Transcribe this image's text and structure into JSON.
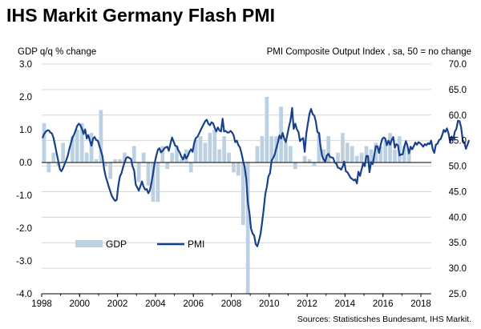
{
  "title": "IHS Markit Germany Flash PMI",
  "source": "Sources: Statisticshes Bundesamt, IHS Markit.",
  "colors": {
    "gdp": "#bcd0e2",
    "pmi": "#17418c",
    "grid": "#d6d6d6",
    "text": "#000000"
  },
  "chart_data": {
    "type": "bar+line",
    "left_axis_label": "GDP q/q % change",
    "right_axis_label": "PMI Composite  Output Index , sa, 50 = no change",
    "ylim_left": [
      -4.0,
      3.0
    ],
    "ylim_right": [
      25.0,
      70.0
    ],
    "left_ticks": [
      "3.0",
      "2.0",
      "1.0",
      "0.0",
      "-1.0",
      "-2.0",
      "-3.0",
      "-4.0"
    ],
    "right_ticks": [
      "70.0",
      "65.0",
      "60.0",
      "55.0",
      "50.0",
      "45.0",
      "40.0",
      "35.0",
      "30.0",
      "25.0"
    ],
    "x_ticks": [
      "1998",
      "2000",
      "2002",
      "2004",
      "2006",
      "2008",
      "2010",
      "2012",
      "2014",
      "2016",
      "2018"
    ],
    "grid": "horizontal",
    "legend": {
      "position": "bottom-left",
      "gdp_label": "GDP",
      "pmi_label": "PMI"
    },
    "gdp": {
      "name": "GDP",
      "start": "1998Q1",
      "values": [
        1.2,
        -0.3,
        0.3,
        -0.1,
        0.6,
        0.0,
        0.8,
        1.0,
        1.2,
        0.3,
        0.9,
        0.1,
        1.6,
        -0.1,
        -0.5,
        0.1,
        0.1,
        0.3,
        0.0,
        0.5,
        -0.6,
        0.3,
        -0.7,
        -1.2,
        -1.2,
        0.5,
        -0.2,
        0.3,
        0.5,
        0.1,
        0.4,
        -0.3,
        0.7,
        0.8,
        0.6,
        0.9,
        1.0,
        0.4,
        0.8,
        0.3,
        -0.3,
        -0.4,
        -1.9,
        -4.0,
        0.0,
        0.5,
        0.8,
        2.0,
        0.8,
        0.8,
        1.7,
        0.6,
        0.5,
        -0.2,
        0.0,
        0.2,
        0.1,
        -0.1,
        0.9,
        0.4,
        0.8,
        0.0,
        0.3,
        0.9,
        0.6,
        0.5,
        0.2,
        0.3,
        0.5,
        0.4,
        0.6,
        0.5,
        0.7,
        0.9,
        0.4,
        0.8,
        0.5,
        0.4
      ]
    },
    "pmi": {
      "name": "PMI",
      "start": "1998-01",
      "values": [
        55.5,
        56.3,
        56.7,
        57.0,
        57.0,
        56.6,
        56.4,
        55.5,
        54.0,
        52.5,
        51.0,
        49.4,
        49.0,
        49.6,
        50.4,
        51.1,
        52.0,
        53.4,
        54.5,
        55.6,
        56.2,
        57.0,
        57.9,
        58.3,
        58.0,
        57.3,
        56.3,
        57.2,
        55.4,
        56.1,
        55.0,
        54.0,
        55.4,
        55.7,
        55.1,
        55.0,
        54.0,
        53.0,
        51.9,
        49.5,
        48.0,
        47.0,
        45.9,
        45.0,
        44.1,
        43.6,
        43.2,
        43.4,
        46.2,
        48.0,
        48.6,
        49.8,
        50.8,
        51.6,
        51.8,
        51.6,
        51.4,
        50.0,
        49.2,
        46.4,
        45.8,
        45.2,
        46.1,
        47.0,
        46.0,
        45.4,
        45.5,
        44.7,
        45.3,
        46.8,
        48.5,
        50.6,
        52.0,
        53.2,
        53.5,
        52.7,
        53.0,
        53.4,
        53.7,
        53.8,
        53.0,
        54.4,
        55.6,
        54.8,
        54.0,
        53.9,
        53.1,
        52.6,
        51.8,
        51.3,
        52.3,
        51.5,
        52.0,
        52.8,
        53.3,
        52.8,
        54.5,
        55.5,
        55.7,
        56.3,
        57.0,
        57.6,
        58.2,
        58.8,
        59.1,
        58.3,
        58.0,
        58.6,
        58.4,
        57.5,
        56.8,
        57.6,
        57.0,
        56.8,
        59.3,
        56.8,
        56.9,
        56.6,
        56.6,
        56.9,
        56.6,
        56.0,
        54.7,
        55.0,
        54.1,
        53.7,
        52.5,
        51.0,
        49.8,
        47.5,
        42.8,
        40.8,
        37.8,
        36.8,
        36.4,
        34.7,
        34.3,
        35.4,
        36.7,
        38.9,
        41.5,
        44.5,
        45.9,
        48.0,
        48.6,
        51.1,
        51.6,
        52.3,
        53.5,
        54.6,
        56.0,
        55.4,
        56.5,
        55.4,
        54.7,
        56.2,
        57.7,
        59.0,
        61.4,
        57.3,
        58.3,
        57.2,
        56.7,
        54.9,
        55.3,
        55.5,
        52.8,
        56.4,
        58.4,
        60.3,
        61.2,
        60.2,
        59.9,
        58.8,
        56.7,
        56.5,
        53.9,
        52.0,
        51.3,
        50.9,
        52.1,
        52.4,
        51.8,
        51.7,
        51.6,
        50.7,
        50.5,
        49.7,
        49.6,
        49.3,
        49.9,
        50.9,
        49.0,
        48.8,
        48.3,
        47.7,
        47.5,
        47.2,
        47.4,
        46.6,
        48.9,
        48.1,
        49.4,
        50.6,
        50.0,
        52.0,
        52.0,
        48.8,
        50.8,
        50.4,
        52.2,
        53.9,
        53.9,
        52.6,
        54.1,
        55.3,
        55.6,
        55.4,
        54.1,
        55.0,
        54.2,
        55.1,
        55.7,
        53.6,
        54.3,
        54.1,
        52.1,
        52.3,
        52.3,
        53.8,
        54.9,
        54.0,
        52.5,
        53.8,
        53.3,
        53.9,
        54.6,
        54.2,
        54.7,
        54.5,
        54.2,
        53.8,
        54.3,
        54.1,
        54.5,
        54.3,
        55.0,
        53.3,
        52.6,
        54.2,
        54.4,
        55.1,
        55.3,
        56.1,
        57.1,
        56.7,
        57.4,
        56.4,
        54.7,
        55.8,
        55.2,
        56.8,
        57.3,
        58.9,
        58.8,
        57.6,
        55.1,
        54.6,
        53.4,
        54.2,
        55.1
      ]
    }
  }
}
